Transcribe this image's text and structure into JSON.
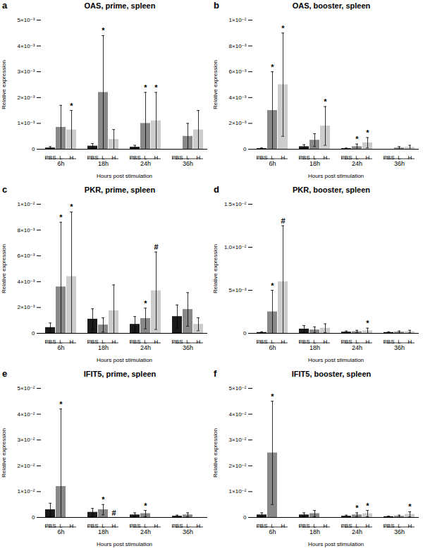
{
  "chart_data": [
    {
      "type": "bar",
      "title": "OAS, prime, spleen",
      "annotations": [
        "a"
      ],
      "xlabel": "Hours post stimulation",
      "ylabel": "Relative expression",
      "categories": [
        "6h",
        "18h",
        "24h",
        "36h"
      ],
      "series": [
        {
          "name": "PBS",
          "color": "#1a1a1a",
          "values": [
            5e-05,
            0.00012,
            8e-05,
            0.0
          ],
          "errors": [
            5e-05,
            0.0001,
            7e-05,
            0.0
          ],
          "sig_labels": [
            null,
            null,
            null,
            null
          ]
        },
        {
          "name": "L",
          "color": "#888888",
          "values": [
            0.00085,
            0.0022,
            0.001,
            0.0005
          ],
          "errors": [
            0.00085,
            0.0022,
            0.0012,
            0.0005
          ],
          "sig_labels": [
            null,
            "*",
            "*",
            null
          ]
        },
        {
          "name": "H",
          "color": "#cccccc",
          "values": [
            0.00075,
            0.00038,
            0.0011,
            0.00075
          ],
          "errors": [
            0.00075,
            0.00038,
            0.0011,
            0.00075
          ],
          "sig_labels": [
            "*",
            null,
            "*",
            null
          ]
        }
      ],
      "ylim": [
        0,
        0.005
      ],
      "yticks": [
        0,
        {
          "value": 0.001,
          "label": "1×10⁻³"
        },
        {
          "value": 0.002,
          "label": "2×10⁻³"
        },
        {
          "value": 0.003,
          "label": "3×10⁻³"
        },
        {
          "value": 0.004,
          "label": "4×10⁻³"
        },
        {
          "value": 0.005,
          "label": "5×10⁻³"
        }
      ],
      "grid": false,
      "legend": false
    },
    {
      "type": "bar",
      "title": "OAS, booster, spleen",
      "annotations": [
        "b"
      ],
      "xlabel": "Hours post stimulation",
      "ylabel": "Relative expression",
      "categories": [
        "6h",
        "18h",
        "24h",
        "36h"
      ],
      "series": [
        {
          "name": "PBS",
          "color": "#1a1a1a",
          "values": [
            5e-05,
            0.0002,
            5e-05,
            0.0
          ],
          "errors": [
            5e-05,
            0.00015,
            4e-05,
            0.0
          ],
          "sig_labels": [
            null,
            null,
            null,
            null
          ]
        },
        {
          "name": "L",
          "color": "#888888",
          "values": [
            0.003,
            0.0007,
            0.0002,
            0.0001
          ],
          "errors": [
            0.003,
            0.0005,
            0.0002,
            0.0001
          ],
          "sig_labels": [
            "*",
            null,
            "*",
            null
          ]
        },
        {
          "name": "H",
          "color": "#cccccc",
          "values": [
            0.005,
            0.0018,
            0.0005,
            0.00015
          ],
          "errors": [
            0.004,
            0.0015,
            0.0004,
            0.00015
          ],
          "sig_labels": [
            "*",
            "*",
            "*",
            null
          ]
        }
      ],
      "ylim": [
        0,
        0.01
      ],
      "yticks": [
        0,
        {
          "value": 0.002,
          "label": "2×10⁻³"
        },
        {
          "value": 0.004,
          "label": "4×10⁻³"
        },
        {
          "value": 0.006,
          "label": "6×10⁻³"
        },
        {
          "value": 0.008,
          "label": "8×10⁻³"
        },
        {
          "value": 0.01,
          "label": "1×10⁻²"
        }
      ],
      "grid": false,
      "legend": false
    },
    {
      "type": "bar",
      "title": "PKR, prime, spleen",
      "annotations": [
        "c"
      ],
      "xlabel": "Hours post stimulation",
      "ylabel": "Relative expression",
      "categories": [
        "6h",
        "18h",
        "24h",
        "36h"
      ],
      "series": [
        {
          "name": "PBS",
          "color": "#1a1a1a",
          "values": [
            0.00045,
            0.0011,
            0.0007,
            0.0013
          ],
          "errors": [
            0.00035,
            0.0008,
            0.0006,
            0.0009
          ],
          "sig_labels": [
            null,
            null,
            null,
            null
          ]
        },
        {
          "name": "L",
          "color": "#888888",
          "values": [
            0.0036,
            0.00065,
            0.00115,
            0.00185
          ],
          "errors": [
            0.005,
            0.00055,
            0.0008,
            0.0013
          ],
          "sig_labels": [
            "*",
            null,
            "*",
            null
          ]
        },
        {
          "name": "H",
          "color": "#cccccc",
          "values": [
            0.0044,
            0.00175,
            0.0033,
            0.0007
          ],
          "errors": [
            0.005,
            0.002,
            0.003,
            0.0005
          ],
          "sig_labels": [
            "*",
            null,
            "#",
            null
          ]
        }
      ],
      "ylim": [
        0,
        0.01
      ],
      "yticks": [
        0,
        {
          "value": 0.002,
          "label": "2×10⁻³"
        },
        {
          "value": 0.004,
          "label": "4×10⁻³"
        },
        {
          "value": 0.006,
          "label": "6×10⁻³"
        },
        {
          "value": 0.008,
          "label": "8×10⁻³"
        },
        {
          "value": 0.01,
          "label": "1×10⁻²"
        }
      ],
      "grid": false,
      "legend": false
    },
    {
      "type": "bar",
      "title": "PKR, booster, spleen",
      "annotations": [
        "d"
      ],
      "xlabel": "Hours post stimulation",
      "ylabel": "Relative expression",
      "categories": [
        "6h",
        "18h",
        "24h",
        "36h"
      ],
      "series": [
        {
          "name": "PBS",
          "color": "#1a1a1a",
          "values": [
            0.0001,
            0.0005,
            0.00015,
            0.0001
          ],
          "errors": [
            8e-05,
            0.0004,
            0.00012,
            8e-05
          ],
          "sig_labels": [
            null,
            null,
            null,
            null
          ]
        },
        {
          "name": "L",
          "color": "#888888",
          "values": [
            0.0025,
            0.0004,
            0.0002,
            0.00015
          ],
          "errors": [
            0.0025,
            0.00035,
            0.00015,
            0.00012
          ],
          "sig_labels": [
            "*",
            null,
            null,
            null
          ]
        },
        {
          "name": "H",
          "color": "#cccccc",
          "values": [
            0.006,
            0.0006,
            0.0003,
            0.0002
          ],
          "errors": [
            0.0065,
            0.0005,
            0.0003,
            0.00015
          ],
          "sig_labels": [
            "#",
            null,
            "*",
            null
          ]
        }
      ],
      "ylim": [
        0,
        0.015
      ],
      "yticks": [
        0,
        {
          "value": 0.005,
          "label": "5×10⁻³"
        },
        {
          "value": 0.01,
          "label": "1.0×10⁻²"
        },
        {
          "value": 0.015,
          "label": "1.5×10⁻²"
        }
      ],
      "grid": false,
      "legend": false
    },
    {
      "type": "bar",
      "title": "IFIT5, prime, spleen",
      "annotations": [
        "e"
      ],
      "xlabel": "Hours post stimulation",
      "ylabel": "Relative expression",
      "categories": [
        "6h",
        "18h",
        "24h",
        "36h"
      ],
      "series": [
        {
          "name": "PBS",
          "color": "#1a1a1a",
          "values": [
            0.003,
            0.002,
            0.001,
            0.0005
          ],
          "errors": [
            0.0025,
            0.0015,
            0.0008,
            0.0004
          ],
          "sig_labels": [
            null,
            null,
            null,
            null
          ]
        },
        {
          "name": "L",
          "color": "#888888",
          "values": [
            0.012,
            0.003,
            0.0015,
            0.001
          ],
          "errors": [
            0.03,
            0.002,
            0.0012,
            0.0008
          ],
          "sig_labels": [
            "*",
            "*",
            "*",
            null
          ]
        },
        {
          "name": "H",
          "color": "#cccccc",
          "values": [
            0.0,
            0.0,
            0.0,
            0.0
          ],
          "errors": [
            0.0,
            0.0,
            0.0,
            0.0
          ],
          "sig_labels": [
            null,
            "#",
            null,
            null
          ]
        }
      ],
      "ylim": [
        0,
        0.05
      ],
      "yticks": [
        0,
        {
          "value": 0.01,
          "label": "1×10⁻²"
        },
        {
          "value": 0.02,
          "label": "2×10⁻²"
        },
        {
          "value": 0.03,
          "label": "3×10⁻²"
        },
        {
          "value": 0.04,
          "label": "4×10⁻²"
        },
        {
          "value": 0.05,
          "label": "5×10⁻²"
        }
      ],
      "grid": false,
      "legend": false
    },
    {
      "type": "bar",
      "title": "IFIT5, booster, spleen",
      "annotations": [
        "f"
      ],
      "xlabel": "Hours post stimulation",
      "ylabel": "Relative expression",
      "categories": [
        "6h",
        "18h",
        "24h",
        "36h"
      ],
      "series": [
        {
          "name": "PBS",
          "color": "#1a1a1a",
          "values": [
            0.001,
            0.001,
            0.0005,
            0.0003
          ],
          "errors": [
            0.0008,
            0.0008,
            0.0004,
            0.00025
          ],
          "sig_labels": [
            null,
            null,
            null,
            null
          ]
        },
        {
          "name": "L",
          "color": "#888888",
          "values": [
            0.025,
            0.0015,
            0.001,
            0.0005
          ],
          "errors": [
            0.02,
            0.0012,
            0.0008,
            0.0004
          ],
          "sig_labels": [
            "*",
            null,
            "*",
            null
          ]
        },
        {
          "name": "H",
          "color": "#cccccc",
          "values": [
            0.0,
            0.0,
            0.0015,
            0.0012
          ],
          "errors": [
            0.0,
            0.0,
            0.0012,
            0.001
          ],
          "sig_labels": [
            null,
            null,
            "*",
            "*"
          ]
        }
      ],
      "ylim": [
        0,
        0.05
      ],
      "yticks": [
        0,
        {
          "value": 0.01,
          "label": "1×10⁻²"
        },
        {
          "value": 0.02,
          "label": "2×10⁻²"
        },
        {
          "value": 0.03,
          "label": "3×10⁻²"
        },
        {
          "value": 0.04,
          "label": "4×10⁻²"
        },
        {
          "value": 0.05,
          "label": "5×10⁻²"
        }
      ],
      "grid": false,
      "legend": false
    }
  ]
}
